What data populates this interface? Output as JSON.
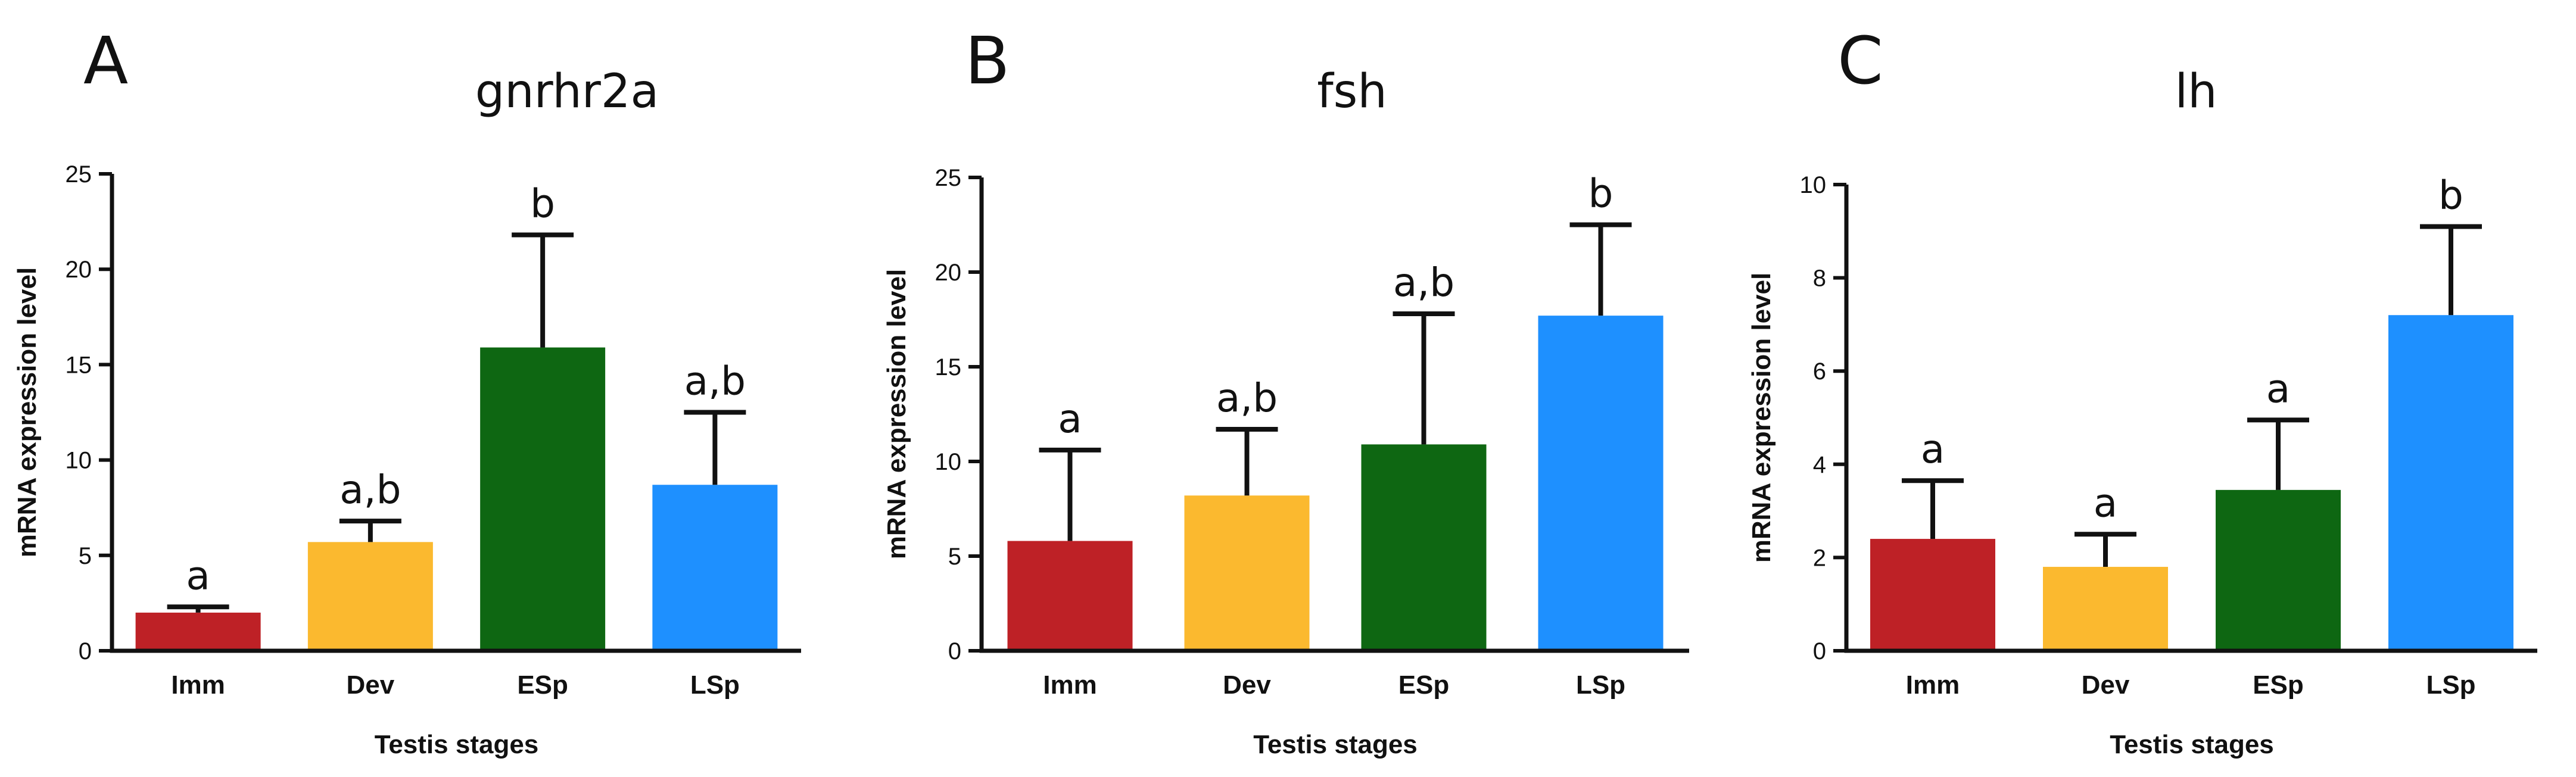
{
  "chart_data": [
    {
      "type": "bar",
      "panel": "A",
      "title": "gnrhr2a",
      "xlabel": "Testis stages",
      "ylabel": "mRNA expression level",
      "ylim": [
        0,
        25
      ],
      "yticks": [
        0,
        5,
        10,
        15,
        20,
        25
      ],
      "categories": [
        "Imm",
        "Dev",
        "ESp",
        "LSp"
      ],
      "values": [
        2.0,
        5.7,
        15.9,
        8.7
      ],
      "errors": [
        0.3,
        1.1,
        5.9,
        3.8
      ],
      "labels": [
        "a",
        "a,b",
        "b",
        "a,b"
      ],
      "colors": [
        "#be2126",
        "#fbb92f",
        "#0e6712",
        "#1e90ff"
      ]
    },
    {
      "type": "bar",
      "panel": "B",
      "title": "fsh",
      "xlabel": "Testis stages",
      "ylabel": "mRNA expression level",
      "ylim": [
        0,
        25
      ],
      "yticks": [
        0,
        5,
        10,
        15,
        20,
        25
      ],
      "categories": [
        "Imm",
        "Dev",
        "ESp",
        "LSp"
      ],
      "values": [
        5.8,
        8.2,
        10.9,
        17.7
      ],
      "errors": [
        4.8,
        3.5,
        6.9,
        4.8
      ],
      "labels": [
        "a",
        "a,b",
        "a,b",
        "b"
      ],
      "colors": [
        "#be2126",
        "#fbb92f",
        "#0e6712",
        "#1e90ff"
      ]
    },
    {
      "type": "bar",
      "panel": "C",
      "title": "lh",
      "xlabel": "Testis stages",
      "ylabel": "mRNA expression level",
      "ylim": [
        0,
        10
      ],
      "yticks": [
        0,
        2,
        4,
        6,
        8,
        10
      ],
      "categories": [
        "Imm",
        "Dev",
        "ESp",
        "LSp"
      ],
      "values": [
        2.4,
        1.8,
        3.45,
        7.2
      ],
      "errors": [
        1.25,
        0.7,
        1.5,
        1.9
      ],
      "labels": [
        "a",
        "a",
        "a",
        "b"
      ],
      "colors": [
        "#be2126",
        "#fbb92f",
        "#0e6712",
        "#1e90ff"
      ]
    }
  ]
}
